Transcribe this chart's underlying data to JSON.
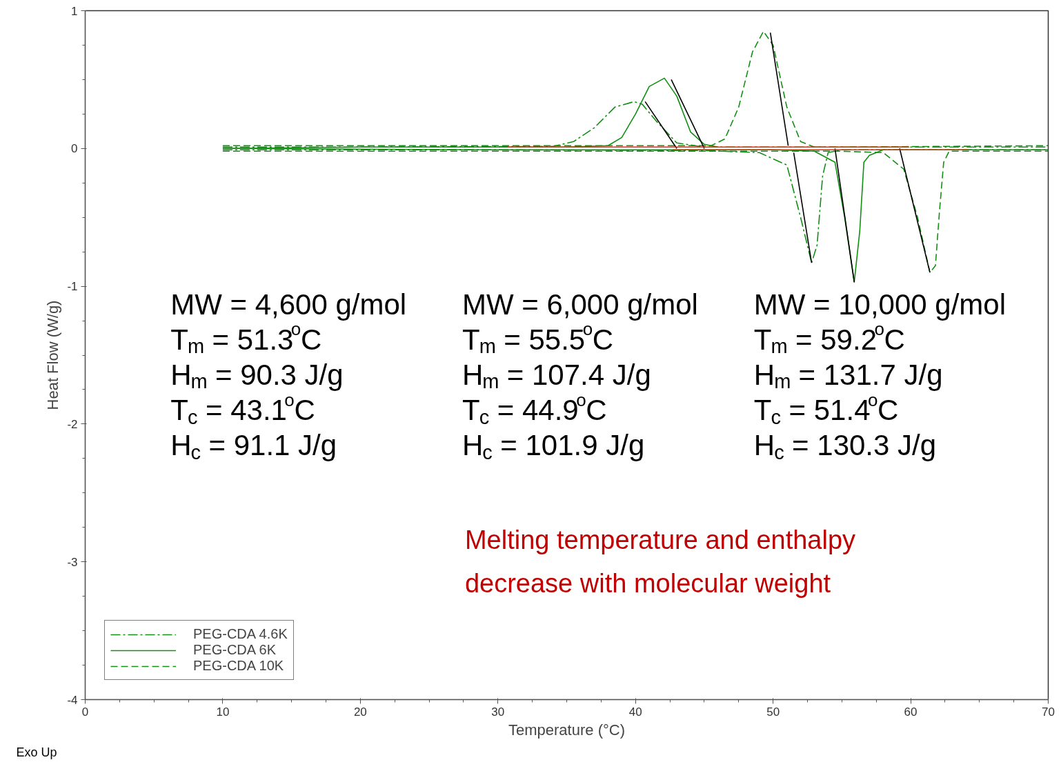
{
  "chart_data": {
    "type": "line",
    "xlabel": "Temperature (°C)",
    "ylabel": "Heat Flow (W/g)",
    "xlim": [
      0,
      70
    ],
    "ylim": [
      -4,
      1
    ],
    "xticks": [
      0,
      10,
      20,
      30,
      40,
      50,
      60,
      70
    ],
    "yticks": [
      -4,
      -3,
      -2,
      -1,
      0,
      1
    ],
    "grid": false,
    "legend": "bottom left",
    "series": [
      {
        "name": "PEG-CDA 4.6K",
        "color": "#109010",
        "line_style": "dashdot",
        "x": [
          10,
          30,
          45,
          49,
          51,
          52,
          52.8,
          53.2,
          53.6,
          54,
          55,
          70
        ],
        "values": [
          -0.01,
          -0.01,
          -0.015,
          -0.03,
          -0.12,
          -0.5,
          -0.83,
          -0.7,
          -0.2,
          -0.03,
          -0.01,
          -0.01
        ]
      },
      {
        "color": "#109010",
        "line_style": "dashdot",
        "x": [
          10,
          20,
          34,
          35.5,
          37,
          38.5,
          39.9,
          40.5,
          41.5,
          43,
          45,
          50,
          70
        ],
        "values": [
          0.01,
          0.01,
          0.015,
          0.05,
          0.15,
          0.3,
          0.34,
          0.32,
          0.2,
          0.04,
          0.01,
          0.01,
          0.01
        ]
      },
      {
        "name": "PEG-CDA 6K",
        "color": "#109010",
        "line_style": "solid",
        "x": [
          10,
          30,
          50,
          53,
          54.5,
          55.2,
          55.9,
          56.3,
          56.6,
          57,
          58,
          70
        ],
        "values": [
          0,
          -0.01,
          -0.01,
          -0.02,
          -0.1,
          -0.5,
          -0.97,
          -0.6,
          -0.1,
          -0.05,
          -0.01,
          -0.01
        ]
      },
      {
        "color": "#109010",
        "line_style": "solid",
        "x": [
          10,
          20,
          35,
          38,
          39,
          40,
          41,
          42.1,
          43,
          44,
          45,
          46
        ],
        "values": [
          0,
          0.01,
          0.01,
          0.02,
          0.08,
          0.25,
          0.45,
          0.51,
          0.38,
          0.12,
          0.03,
          0.01
        ]
      },
      {
        "name": "PEG-CDA 10K",
        "color": "#109010",
        "line_style": "dashed",
        "x": [
          10,
          30,
          55,
          58,
          59.5,
          60.5,
          61.4,
          61.8,
          62.1,
          62.4,
          62.8,
          70
        ],
        "values": [
          -0.02,
          -0.02,
          -0.02,
          -0.03,
          -0.15,
          -0.5,
          -0.9,
          -0.85,
          -0.45,
          -0.1,
          -0.02,
          -0.02
        ]
      },
      {
        "color": "#109010",
        "line_style": "dashed",
        "x": [
          10,
          30,
          45.5,
          46.5,
          47.5,
          48.5,
          49.3,
          50,
          51,
          52,
          53,
          55,
          70
        ],
        "values": [
          0.02,
          0.02,
          0.02,
          0.07,
          0.3,
          0.7,
          0.85,
          0.75,
          0.3,
          0.05,
          0.01,
          0.01,
          0.02
        ]
      },
      {
        "color": "#000000",
        "line_style": "solid",
        "x": [
          40.7,
          43.0
        ],
        "values": [
          0.34,
          0
        ]
      },
      {
        "color": "#000000",
        "line_style": "solid",
        "x": [
          42.6,
          45.0
        ],
        "values": [
          0.5,
          0
        ]
      },
      {
        "color": "#000000",
        "line_style": "solid",
        "x": [
          49.8,
          51.1
        ],
        "values": [
          0.84,
          0.02
        ]
      },
      {
        "color": "#000000",
        "line_style": "solid",
        "x": [
          51.5,
          52.8
        ],
        "values": [
          -0.03,
          -0.83
        ]
      },
      {
        "color": "#000000",
        "line_style": "solid",
        "x": [
          54.5,
          55.9
        ],
        "values": [
          0,
          -0.97
        ]
      },
      {
        "color": "#000000",
        "line_style": "solid",
        "x": [
          59.2,
          61.4
        ],
        "values": [
          0,
          -0.9
        ]
      },
      {
        "color": "#ff2000",
        "line_style": "solid",
        "x": [
          30.7,
          59.9
        ],
        "values": [
          0.01,
          0.01
        ]
      },
      {
        "color": "#ff2000",
        "line_style": "solid",
        "x": [
          42.7,
          64.2
        ],
        "values": [
          -0.01,
          -0.01
        ]
      }
    ],
    "annotations": [
      "MW = 4,600 g/mol",
      "T$_{m}$ = 51.3$^{o}$C",
      "H$_{m}$ = 90.3 J/g",
      "T$_{c}$ = 43.1$^{o}$C",
      "H$_{c}$ = 91.1 J/g",
      "MW = 6,000 g/mol",
      "T$_{m}$ = 55.5$^{o}$C",
      "H$_{m}$ = 107.4 J/g",
      "T$_{c}$ = 44.9$^{o}$C",
      "H$_{c}$ = 101.9 J/g",
      "MW = 10,000 g/mol",
      "T$_{m}$ = 59.2$^{o}$C",
      "H$_{m}$ = 131.7 J/g",
      "T$_{c}$ = 51.4$^{o}$C",
      "H$_{c}$ = 130.3 J/g",
      "Melting temperature and enthalpy\ndecrease with molecular weight",
      "Exo Up"
    ]
  }
}
